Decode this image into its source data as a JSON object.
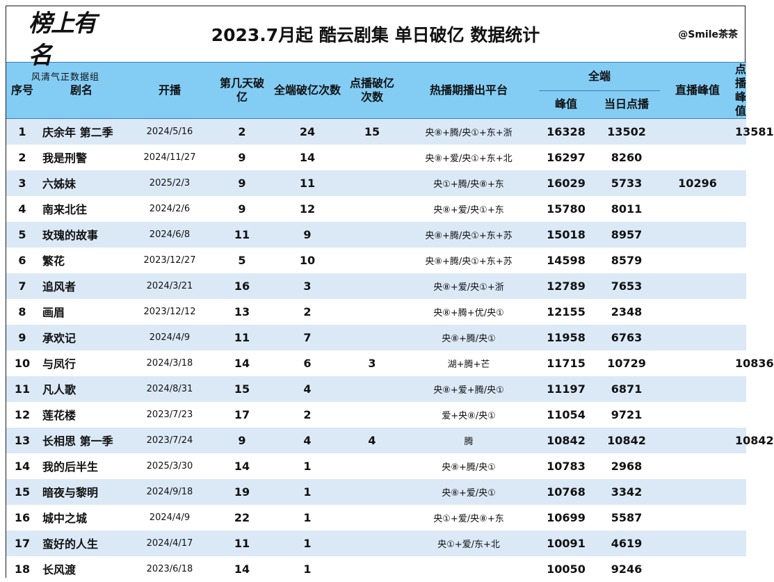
{
  "logo": {
    "script": "榜上有名",
    "subtitle": "风清气正数据组"
  },
  "title": "2023.7月起 酷云剧集 单日破亿 数据统计",
  "author": "@Smile茶茶",
  "headers": {
    "index": "序号",
    "name": "剧名",
    "premiere": "开播",
    "day": "第几天破亿",
    "all_count": "全端破亿次数",
    "vod_count": "点播破亿次数",
    "platform": "热播期播出平台",
    "all_group": "全端",
    "peak": "峰值",
    "day_vod": "当日点播",
    "live_peak": "直播峰值",
    "vod_peak": "点播峰值"
  },
  "rows": [
    {
      "index": "1",
      "name": "庆余年 第二季",
      "premiere": "2024/5/16",
      "day": "2",
      "all_count": "24",
      "vod_count": "15",
      "platform": "央⑧+腾/央①+东+浙",
      "peak": "16328",
      "day_vod": "13502",
      "live_peak": "",
      "vod_peak": "13581"
    },
    {
      "index": "2",
      "name": "我是刑警",
      "premiere": "2024/11/27",
      "day": "9",
      "all_count": "14",
      "vod_count": "",
      "platform": "央⑧+爱/央①+东+北",
      "peak": "16297",
      "day_vod": "8260",
      "live_peak": "",
      "vod_peak": ""
    },
    {
      "index": "3",
      "name": "六姊妹",
      "premiere": "2025/2/3",
      "day": "9",
      "all_count": "11",
      "vod_count": "",
      "platform": "央①+腾/央⑧+东",
      "peak": "16029",
      "day_vod": "5733",
      "live_peak": "10296",
      "vod_peak": ""
    },
    {
      "index": "4",
      "name": "南来北往",
      "premiere": "2024/2/6",
      "day": "9",
      "all_count": "12",
      "vod_count": "",
      "platform": "央⑧+爱/央①+东",
      "peak": "15780",
      "day_vod": "8011",
      "live_peak": "",
      "vod_peak": ""
    },
    {
      "index": "5",
      "name": "玫瑰的故事",
      "premiere": "2024/6/8",
      "day": "11",
      "all_count": "9",
      "vod_count": "",
      "platform": "央⑧+腾/央①+东+苏",
      "peak": "15018",
      "day_vod": "8957",
      "live_peak": "",
      "vod_peak": ""
    },
    {
      "index": "6",
      "name": "繁花",
      "premiere": "2023/12/27",
      "day": "5",
      "all_count": "10",
      "vod_count": "",
      "platform": "央⑧+腾/央①+东+苏",
      "peak": "14598",
      "day_vod": "8579",
      "live_peak": "",
      "vod_peak": ""
    },
    {
      "index": "7",
      "name": "追风者",
      "premiere": "2024/3/21",
      "day": "16",
      "all_count": "3",
      "vod_count": "",
      "platform": "央⑧+爱/央①+浙",
      "peak": "12789",
      "day_vod": "7653",
      "live_peak": "",
      "vod_peak": ""
    },
    {
      "index": "8",
      "name": "画眉",
      "premiere": "2023/12/12",
      "day": "13",
      "all_count": "2",
      "vod_count": "",
      "platform": "央⑧+腾+优/央①",
      "peak": "12155",
      "day_vod": "2348",
      "live_peak": "",
      "vod_peak": ""
    },
    {
      "index": "9",
      "name": "承欢记",
      "premiere": "2024/4/9",
      "day": "11",
      "all_count": "7",
      "vod_count": "",
      "platform": "央⑧+腾/央①",
      "peak": "11958",
      "day_vod": "6763",
      "live_peak": "",
      "vod_peak": ""
    },
    {
      "index": "10",
      "name": "与凤行",
      "premiere": "2024/3/18",
      "day": "14",
      "all_count": "6",
      "vod_count": "3",
      "platform": "湖+腾+芒",
      "peak": "11715",
      "day_vod": "10729",
      "live_peak": "",
      "vod_peak": "10836"
    },
    {
      "index": "11",
      "name": "凡人歌",
      "premiere": "2024/8/31",
      "day": "15",
      "all_count": "4",
      "vod_count": "",
      "platform": "央⑧+爱+腾/央①",
      "peak": "11197",
      "day_vod": "6871",
      "live_peak": "",
      "vod_peak": ""
    },
    {
      "index": "12",
      "name": "莲花楼",
      "premiere": "2023/7/23",
      "day": "17",
      "all_count": "2",
      "vod_count": "",
      "platform": "爱+央⑧/央①",
      "peak": "11054",
      "day_vod": "9721",
      "live_peak": "",
      "vod_peak": ""
    },
    {
      "index": "13",
      "name": "长相思 第一季",
      "premiere": "2023/7/24",
      "day": "9",
      "all_count": "4",
      "vod_count": "4",
      "platform": "腾",
      "peak": "10842",
      "day_vod": "10842",
      "live_peak": "",
      "vod_peak": "10842"
    },
    {
      "index": "14",
      "name": "我的后半生",
      "premiere": "2025/3/30",
      "day": "14",
      "all_count": "1",
      "vod_count": "",
      "platform": "央⑧+腾/央①",
      "peak": "10783",
      "day_vod": "2968",
      "live_peak": "",
      "vod_peak": ""
    },
    {
      "index": "15",
      "name": "暗夜与黎明",
      "premiere": "2024/9/18",
      "day": "19",
      "all_count": "1",
      "vod_count": "",
      "platform": "央⑧+爱/央①",
      "peak": "10768",
      "day_vod": "3342",
      "live_peak": "",
      "vod_peak": ""
    },
    {
      "index": "16",
      "name": "城中之城",
      "premiere": "2024/4/9",
      "day": "22",
      "all_count": "1",
      "vod_count": "",
      "platform": "央①+爱/央⑧+东",
      "peak": "10699",
      "day_vod": "5587",
      "live_peak": "",
      "vod_peak": ""
    },
    {
      "index": "17",
      "name": "蛮好的人生",
      "premiere": "2024/4/17",
      "day": "11",
      "all_count": "1",
      "vod_count": "",
      "platform": "央①+爱/东+北",
      "peak": "10091",
      "day_vod": "4619",
      "live_peak": "",
      "vod_peak": ""
    },
    {
      "index": "18",
      "name": "长风渡",
      "premiere": "2023/6/18",
      "day": "14",
      "all_count": "1",
      "vod_count": "",
      "platform": "",
      "peak": "10050",
      "day_vod": "9246",
      "live_peak": "",
      "vod_peak": ""
    }
  ]
}
